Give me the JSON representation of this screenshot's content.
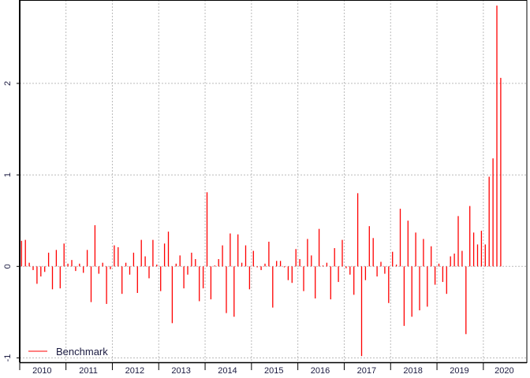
{
  "chart_data": {
    "type": "bar",
    "title": "",
    "xlabel": "",
    "ylabel": "",
    "ylim": [
      -1.05,
      2.9
    ],
    "y_ticks": [
      "-1",
      "0",
      "1",
      "2"
    ],
    "y_tick_values": [
      -1,
      0,
      1,
      2
    ],
    "x_tick_labels": [
      "2010",
      "2011",
      "2012",
      "2013",
      "2014",
      "2015",
      "2016",
      "2017",
      "2018",
      "2019",
      "2020"
    ],
    "grid": true,
    "legend_position": "bottom-left",
    "start": "2010-01",
    "frequency": "monthly",
    "series": [
      {
        "name": "Benchmark",
        "color": "#ff0000",
        "values": [
          0.28,
          0.29,
          0.04,
          -0.04,
          -0.19,
          -0.11,
          -0.06,
          0.15,
          -0.25,
          0.18,
          -0.24,
          0.25,
          0.03,
          0.07,
          -0.05,
          0.03,
          -0.07,
          0.18,
          -0.39,
          0.45,
          -0.08,
          0.04,
          -0.41,
          -0.03,
          0.23,
          0.21,
          -0.3,
          0.04,
          -0.09,
          0.15,
          -0.29,
          0.29,
          0.11,
          -0.13,
          0.29,
          0.02,
          -0.27,
          0.25,
          0.38,
          -0.62,
          0.03,
          0.12,
          -0.24,
          -0.09,
          0.15,
          0.08,
          -0.38,
          -0.24,
          0.81,
          -0.36,
          0.01,
          0.08,
          0.23,
          -0.51,
          0.36,
          -0.55,
          0.35,
          0.04,
          0.23,
          -0.25,
          0.17,
          -0.01,
          -0.04,
          0.03,
          0.27,
          -0.45,
          0.06,
          0.06,
          -0.01,
          -0.15,
          -0.18,
          0.19,
          0.08,
          -0.27,
          0.3,
          0.12,
          -0.35,
          0.41,
          0.01,
          0.04,
          -0.36,
          0.2,
          -0.17,
          0.29,
          -0.02,
          -0.09,
          -0.31,
          0.8,
          -0.98,
          -0.15,
          0.44,
          0.31,
          -0.11,
          0.05,
          -0.08,
          -0.4,
          0.16,
          0.02,
          0.63,
          -0.65,
          0.5,
          -0.55,
          0.37,
          -0.48,
          0.3,
          -0.44,
          0.22,
          -0.2,
          0.03,
          -0.17,
          -0.3,
          0.11,
          0.14,
          0.55,
          0.17,
          -0.74,
          0.66,
          0.37,
          0.24,
          0.39,
          0.24,
          0.98,
          1.18,
          2.85,
          2.06
        ]
      }
    ]
  }
}
